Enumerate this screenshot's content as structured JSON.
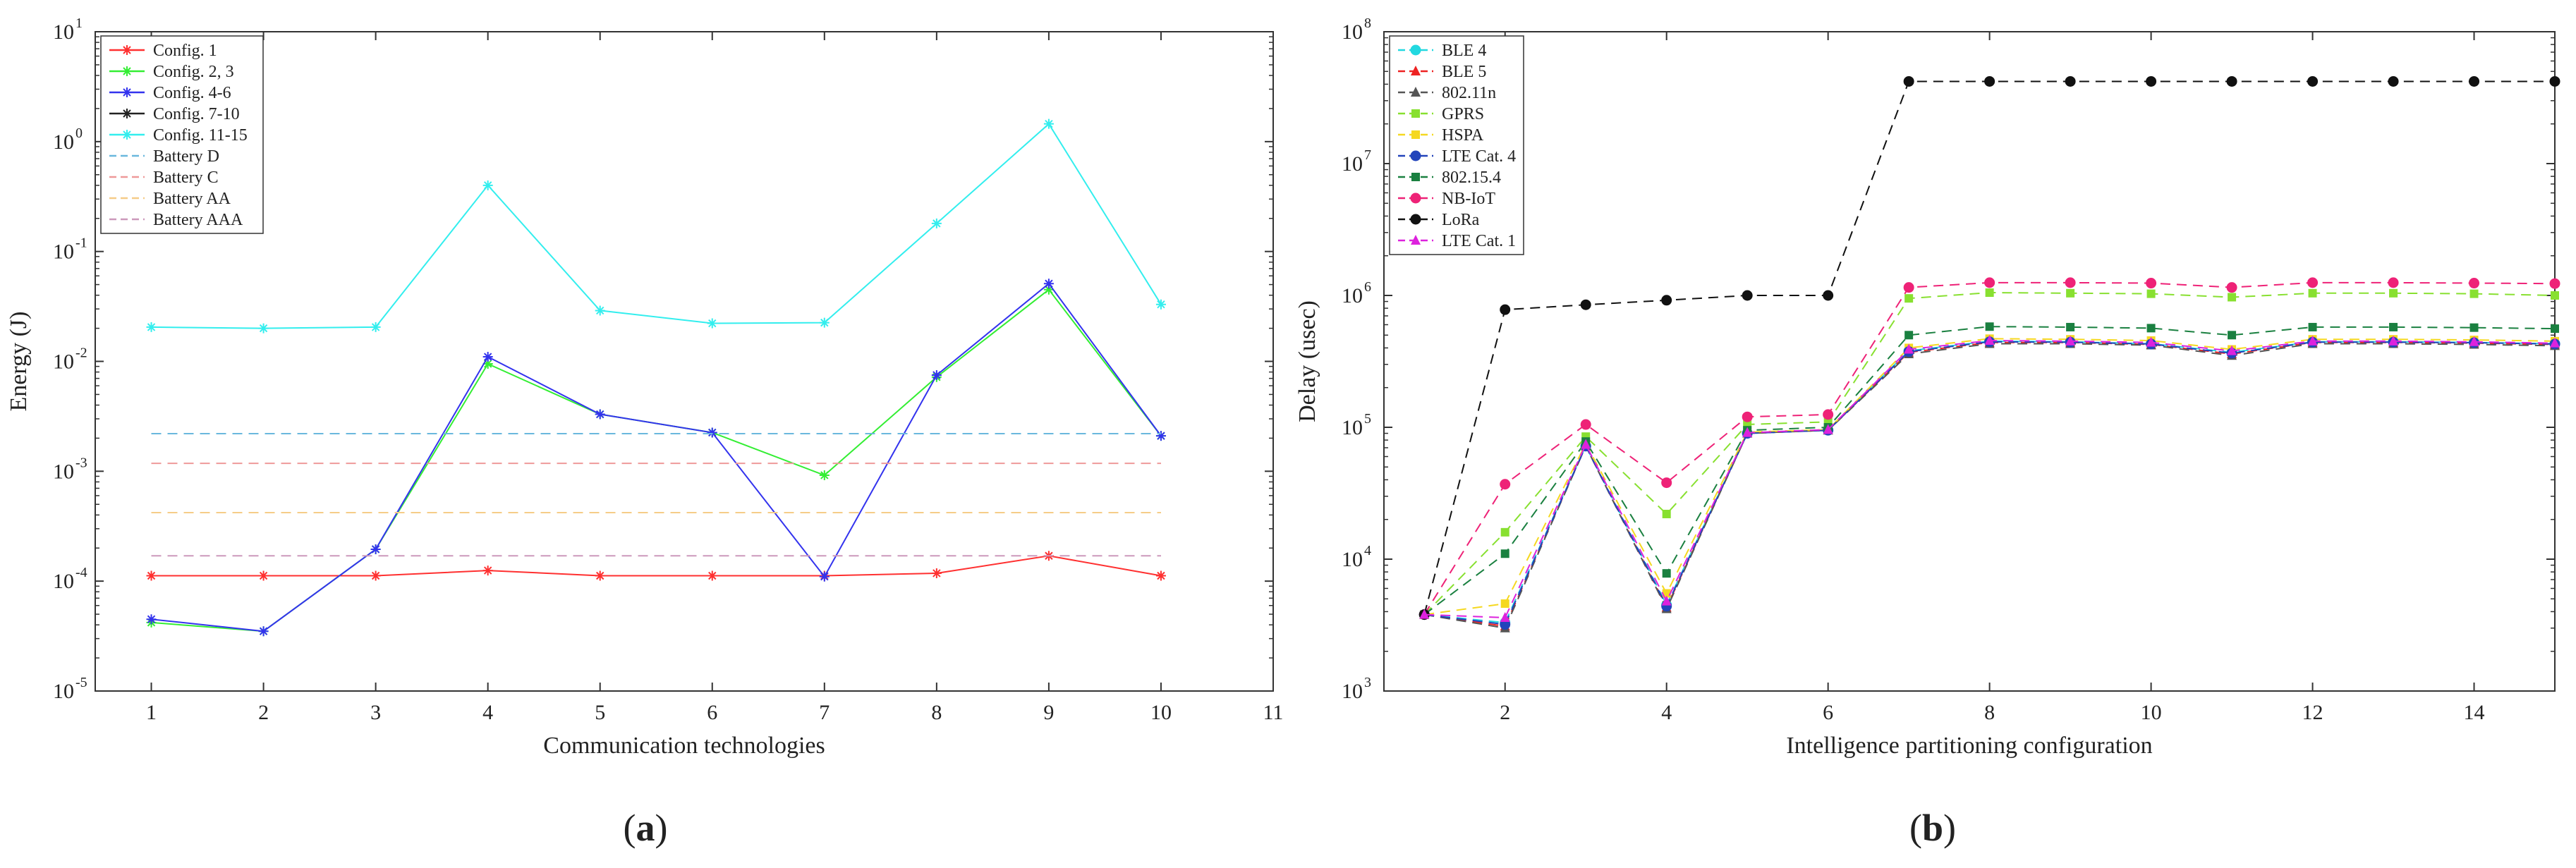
{
  "panel_labels": [
    "a",
    "b"
  ],
  "chart_data": [
    {
      "type": "line",
      "panel": "a",
      "xlabel": "Communication technologies",
      "ylabel": "Energy (J)",
      "yscale": "log",
      "xlim": [
        0.5,
        11
      ],
      "ylim": [
        1e-05,
        10
      ],
      "xticks": [
        1,
        2,
        3,
        4,
        5,
        6,
        7,
        8,
        9,
        10,
        11
      ],
      "yticks": [
        {
          "value": 1e-05,
          "base": "10",
          "exp": "-5"
        },
        {
          "value": 0.0001,
          "base": "10",
          "exp": "-4"
        },
        {
          "value": 0.001,
          "base": "10",
          "exp": "-3"
        },
        {
          "value": 0.01,
          "base": "10",
          "exp": "-2"
        },
        {
          "value": 0.1,
          "base": "10",
          "exp": "-1"
        },
        {
          "value": 1,
          "base": "10",
          "exp": "0"
        },
        {
          "value": 10,
          "base": "10",
          "exp": "1"
        }
      ],
      "legend_position": "top-left",
      "series": [
        {
          "name": "Config. 1",
          "color": "#ff3030",
          "dash": "solid",
          "marker": "star",
          "x": [
            1,
            2,
            3,
            4,
            5,
            6,
            7,
            8,
            9,
            10
          ],
          "values": [
            0.000112,
            0.000112,
            0.000112,
            0.000125,
            0.000112,
            0.000112,
            0.000112,
            0.000118,
            0.00017,
            0.000112
          ]
        },
        {
          "name": "Config. 2, 3",
          "color": "#33ee33",
          "dash": "solid",
          "marker": "star",
          "x": [
            1,
            2,
            3,
            4,
            5,
            6,
            7,
            8,
            9,
            10
          ],
          "values": [
            4.2e-05,
            3.5e-05,
            0.000195,
            0.0095,
            0.0033,
            0.00225,
            0.00092,
            0.0072,
            0.045,
            0.0021
          ]
        },
        {
          "name": "Config. 4-6",
          "color": "#3333ee",
          "dash": "solid",
          "marker": "star",
          "x": [
            1,
            2,
            3,
            4,
            5,
            6,
            7,
            8,
            9,
            10
          ],
          "values": [
            4.5e-05,
            3.5e-05,
            0.000195,
            0.011,
            0.0033,
            0.00225,
            0.00011,
            0.0075,
            0.051,
            0.0021
          ]
        },
        {
          "name": "Config. 7-10",
          "color": "#222222",
          "dash": "solid",
          "marker": "star",
          "x": [],
          "values": []
        },
        {
          "name": "Config. 11-15",
          "color": "#33eeee",
          "dash": "solid",
          "marker": "star",
          "x": [
            1,
            2,
            3,
            4,
            5,
            6,
            7,
            8,
            9,
            10
          ],
          "values": [
            0.0205,
            0.02,
            0.0205,
            0.4,
            0.029,
            0.0222,
            0.0225,
            0.18,
            1.45,
            0.033
          ]
        },
        {
          "name": "Battery D",
          "color": "#6ab8dd",
          "dash": "dashed",
          "marker": "none",
          "x": [
            1,
            10
          ],
          "values": [
            0.0022,
            0.0022
          ]
        },
        {
          "name": "Battery C",
          "color": "#ee9999",
          "dash": "dashed",
          "marker": "none",
          "x": [
            1,
            10
          ],
          "values": [
            0.00118,
            0.00118
          ]
        },
        {
          "name": "Battery AA",
          "color": "#f5cc88",
          "dash": "dashed",
          "marker": "none",
          "x": [
            1,
            10
          ],
          "values": [
            0.00042,
            0.00042
          ]
        },
        {
          "name": "Battery AAA",
          "color": "#cc99bb",
          "dash": "dashed",
          "marker": "none",
          "x": [
            1,
            10
          ],
          "values": [
            0.00017,
            0.00017
          ]
        }
      ]
    },
    {
      "type": "line",
      "panel": "b",
      "xlabel": "Intelligence partitioning configuration",
      "ylabel": "Delay (usec)",
      "yscale": "log",
      "xlim": [
        0.5,
        15
      ],
      "ylim": [
        1000,
        100000000
      ],
      "xticks": [
        2,
        4,
        6,
        8,
        10,
        12,
        14
      ],
      "yticks": [
        {
          "value": 1000,
          "base": "10",
          "exp": "3"
        },
        {
          "value": 10000,
          "base": "10",
          "exp": "4"
        },
        {
          "value": 100000,
          "base": "10",
          "exp": "5"
        },
        {
          "value": 1000000,
          "base": "10",
          "exp": "6"
        },
        {
          "value": 10000000,
          "base": "10",
          "exp": "7"
        },
        {
          "value": 100000000,
          "base": "10",
          "exp": "8"
        }
      ],
      "legend_position": "top-left",
      "series": [
        {
          "name": "BLE 4",
          "color": "#22d8e0",
          "marker": "circle",
          "x": [
            1,
            2,
            3,
            4,
            5,
            6,
            7,
            8,
            9,
            10,
            11,
            12,
            13,
            14,
            15
          ],
          "values": [
            3800,
            3300,
            72000,
            4500,
            90000,
            95000,
            380000,
            450000,
            445000,
            430000,
            370000,
            445000,
            445000,
            440000,
            430000
          ]
        },
        {
          "name": "BLE 5",
          "color": "#ee2222",
          "marker": "triangle",
          "x": [
            1,
            2,
            3,
            4,
            5,
            6,
            7,
            8,
            9,
            10,
            11,
            12,
            13,
            14,
            15
          ],
          "values": [
            3800,
            3100,
            72000,
            4300,
            90000,
            95000,
            370000,
            440000,
            440000,
            425000,
            360000,
            440000,
            440000,
            435000,
            425000
          ]
        },
        {
          "name": "802.11n",
          "color": "#555555",
          "marker": "triangle",
          "x": [
            1,
            2,
            3,
            4,
            5,
            6,
            7,
            8,
            9,
            10,
            11,
            12,
            13,
            14,
            15
          ],
          "values": [
            3800,
            3000,
            72000,
            4200,
            90000,
            95000,
            360000,
            430000,
            430000,
            420000,
            350000,
            430000,
            430000,
            425000,
            415000
          ]
        },
        {
          "name": "GPRS",
          "color": "#88e030",
          "marker": "square",
          "x": [
            1,
            2,
            3,
            4,
            5,
            6,
            7,
            8,
            9,
            10,
            11,
            12,
            13,
            14,
            15
          ],
          "values": [
            3800,
            16000,
            85000,
            22000,
            105000,
            110000,
            950000,
            1050000,
            1040000,
            1030000,
            970000,
            1040000,
            1040000,
            1030000,
            1000000
          ]
        },
        {
          "name": "HSPA",
          "color": "#f5d820",
          "marker": "square",
          "x": [
            1,
            2,
            3,
            4,
            5,
            6,
            7,
            8,
            9,
            10,
            11,
            12,
            13,
            14,
            15
          ],
          "values": [
            3800,
            4600,
            75000,
            5500,
            92000,
            96000,
            400000,
            470000,
            465000,
            455000,
            390000,
            465000,
            465000,
            460000,
            450000
          ]
        },
        {
          "name": "LTE Cat. 4",
          "color": "#2244bb",
          "marker": "circle",
          "x": [
            1,
            2,
            3,
            4,
            5,
            6,
            7,
            8,
            9,
            10,
            11,
            12,
            13,
            14,
            15
          ],
          "values": [
            3800,
            3200,
            72000,
            4400,
            90000,
            95000,
            375000,
            445000,
            442000,
            428000,
            365000,
            442000,
            442000,
            438000,
            428000
          ]
        },
        {
          "name": "802.15.4",
          "color": "#1a8040",
          "marker": "square",
          "x": [
            1,
            2,
            3,
            4,
            5,
            6,
            7,
            8,
            9,
            10,
            11,
            12,
            13,
            14,
            15
          ],
          "values": [
            3800,
            11000,
            78000,
            7800,
            95000,
            100000,
            500000,
            580000,
            575000,
            565000,
            500000,
            575000,
            575000,
            570000,
            560000
          ]
        },
        {
          "name": "NB-IoT",
          "color": "#ee2277",
          "marker": "circle",
          "x": [
            1,
            2,
            3,
            4,
            5,
            6,
            7,
            8,
            9,
            10,
            11,
            12,
            13,
            14,
            15
          ],
          "values": [
            3800,
            37000,
            105000,
            38000,
            120000,
            125000,
            1150000,
            1250000,
            1250000,
            1240000,
            1150000,
            1250000,
            1250000,
            1240000,
            1230000
          ]
        },
        {
          "name": "LoRa",
          "color": "#111111",
          "marker": "circle",
          "x": [
            1,
            2,
            3,
            4,
            5,
            6,
            7,
            8,
            9,
            10,
            11,
            12,
            13,
            14,
            15
          ],
          "values": [
            3800,
            780000,
            850000,
            920000,
            1000000,
            1000000,
            42000000,
            42000000,
            42000000,
            42000000,
            42000000,
            42000000,
            42000000,
            42000000,
            42000000
          ]
        },
        {
          "name": "LTE Cat. 1",
          "color": "#dd22dd",
          "marker": "triangle",
          "x": [
            1,
            2,
            3,
            4,
            5,
            6,
            7,
            8,
            9,
            10,
            11,
            12,
            13,
            14,
            15
          ],
          "values": [
            3800,
            3600,
            74000,
            4800,
            91000,
            96000,
            390000,
            455000,
            450000,
            440000,
            380000,
            450000,
            450000,
            445000,
            435000
          ]
        }
      ]
    }
  ]
}
